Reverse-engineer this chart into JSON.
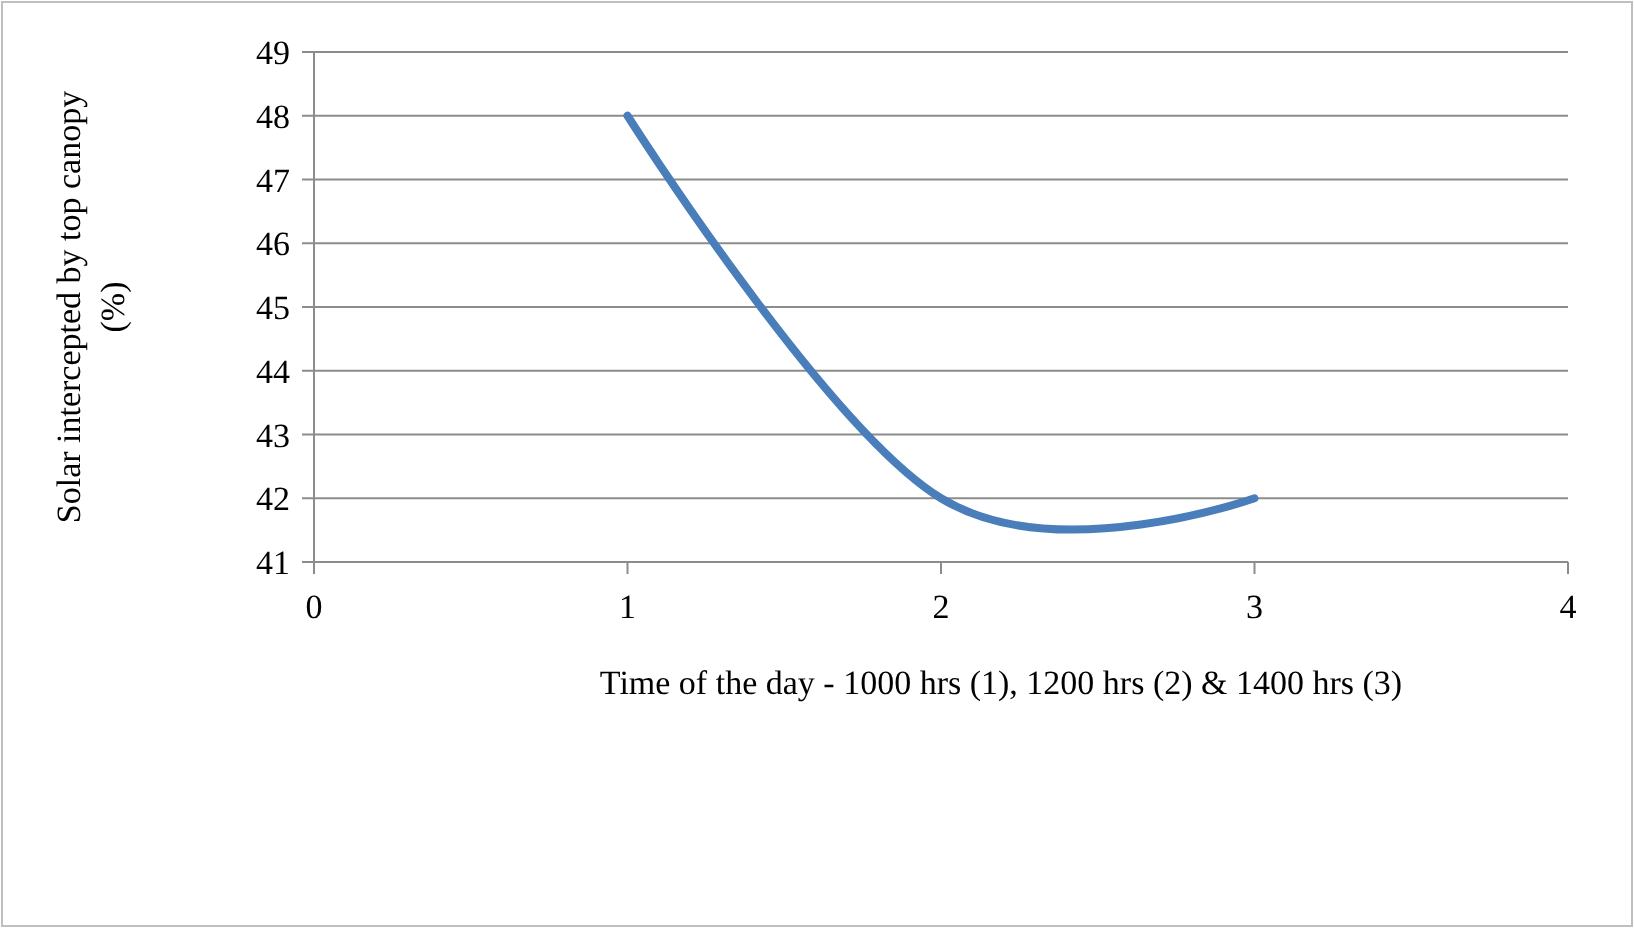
{
  "chart_data": {
    "type": "line",
    "xlabel": "Time of the day - 1000 hrs (1), 1200 hrs (2) & 1400 hrs (3)",
    "ylabel": "Solar intercepted by top canopy (%)",
    "x": [
      1,
      2,
      3
    ],
    "series": [
      {
        "color": "#4a7ebb",
        "values": [
          48,
          42,
          42
        ]
      }
    ],
    "xlim": [
      0,
      4
    ],
    "xticks": [
      0,
      1,
      2,
      3,
      4
    ],
    "ylim": [
      41,
      49
    ],
    "yticks": [
      41,
      42,
      43,
      44,
      45,
      46,
      47,
      48,
      49
    ],
    "grid": "y",
    "marker": "none",
    "line_style": "solid"
  }
}
